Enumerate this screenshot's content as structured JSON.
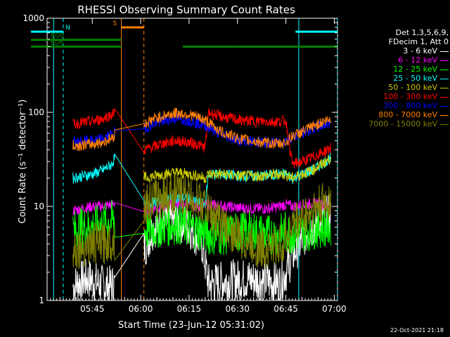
{
  "chart_data": {
    "type": "line",
    "title": "RHESSI Observing Summary Count Rates",
    "ylabel": "Count Rate (s⁻¹ detector⁻¹)",
    "xlabel": "Start Time (23-Jun-12 05:31:02)",
    "y_scale": "log",
    "ylim": [
      1,
      1000
    ],
    "xlim_minutes": [
      0,
      90
    ],
    "x_ticks": [
      {
        "t": 14,
        "label": "05:45"
      },
      {
        "t": 29,
        "label": "06:00"
      },
      {
        "t": 44,
        "label": "06:15"
      },
      {
        "t": 59,
        "label": "06:30"
      },
      {
        "t": 74,
        "label": "06:45"
      },
      {
        "t": 89,
        "label": "07:00"
      }
    ],
    "y_ticks": [
      {
        "v": 1,
        "label": "1"
      },
      {
        "v": 10,
        "label": "10"
      },
      {
        "v": 100,
        "label": "100"
      },
      {
        "v": 1000,
        "label": "1000"
      }
    ],
    "legend_header": [
      "Det 1,3,5,6,9,",
      "FDecim 1, Att 0"
    ],
    "series": [
      {
        "name": "3 - 6 keV",
        "color": "#ffffff",
        "x": [
          8,
          10,
          13,
          16,
          19,
          21,
          30,
          33,
          38,
          43,
          46,
          48,
          50,
          55,
          62,
          68,
          72,
          74,
          76,
          80,
          84,
          87,
          88
        ],
        "y": [
          1.4,
          1.6,
          1.7,
          1.5,
          1.4,
          1.5,
          3.5,
          6,
          7,
          6.5,
          5,
          4,
          1.5,
          1.6,
          1.7,
          1.6,
          1.5,
          2,
          3,
          5,
          7,
          8,
          7
        ]
      },
      {
        "name": "6 - 12 keV",
        "color": "#ff00ff",
        "x": [
          8,
          11,
          14,
          17,
          20,
          21,
          30,
          35,
          40,
          44,
          48,
          50,
          55,
          62,
          68,
          72,
          74,
          76,
          80,
          84,
          88
        ],
        "y": [
          9,
          9.5,
          10,
          10,
          10.5,
          11,
          9,
          10,
          11,
          10.5,
          10,
          10.5,
          10,
          9.5,
          9.5,
          10,
          10.5,
          10,
          10.5,
          11,
          10
        ]
      },
      {
        "name": "12 - 25 keV",
        "color": "#00ff00",
        "x": [
          8,
          11,
          14,
          17,
          20,
          21,
          30,
          35,
          40,
          44,
          48,
          50,
          55,
          62,
          68,
          72,
          74,
          76,
          80,
          84,
          88
        ],
        "y": [
          5.5,
          6,
          6,
          6.5,
          7,
          7,
          5.5,
          6,
          6.5,
          6,
          5.5,
          5,
          5,
          5.5,
          5,
          5,
          5.5,
          5,
          5.5,
          6,
          6
        ]
      },
      {
        "name": "25 - 50 keV",
        "color": "#00ffff",
        "x": [
          8,
          11,
          14,
          17,
          20,
          21,
          30,
          33,
          36,
          40,
          44,
          47,
          49,
          50,
          54,
          60,
          66,
          72,
          74,
          76,
          79,
          82,
          85,
          88
        ],
        "y": [
          20,
          21,
          22,
          24,
          28,
          33,
          10,
          11,
          12,
          12.5,
          12,
          11,
          10.5,
          22,
          22,
          21,
          21,
          22,
          22,
          20,
          22,
          24,
          28,
          33
        ]
      },
      {
        "name": "50 - 100 keV",
        "color": "#cccc00",
        "x": [
          30,
          33,
          36,
          40,
          44,
          47,
          49,
          50,
          54,
          60,
          66,
          72,
          74,
          76,
          79,
          82,
          85,
          88
        ],
        "y": [
          20,
          21,
          22,
          23,
          22,
          21,
          20,
          22,
          22,
          21,
          21,
          22,
          22,
          20,
          22,
          24,
          28,
          33
        ]
      },
      {
        "name": "100 - 300 keV",
        "color": "#ff0000",
        "x": [
          8,
          11,
          14,
          17,
          20,
          21,
          30,
          33,
          36,
          40,
          44,
          47,
          49,
          50,
          54,
          60,
          66,
          72,
          74,
          76,
          79,
          82,
          85,
          88
        ],
        "y": [
          75,
          78,
          80,
          85,
          95,
          100,
          40,
          43,
          47,
          50,
          48,
          45,
          42,
          100,
          90,
          82,
          80,
          80,
          82,
          28,
          30,
          33,
          37,
          42
        ]
      },
      {
        "name": "300 - 800 keV",
        "color": "#0000ff",
        "x": [
          8,
          11,
          14,
          17,
          20,
          21,
          30,
          33,
          36,
          40,
          44,
          47,
          49,
          50,
          54,
          60,
          66,
          72,
          74,
          76,
          79,
          82,
          85,
          88
        ],
        "y": [
          48,
          49,
          50,
          52,
          58,
          63,
          68,
          75,
          82,
          86,
          82,
          76,
          72,
          70,
          58,
          50,
          48,
          47,
          50,
          55,
          60,
          66,
          72,
          78
        ]
      },
      {
        "name": "800 - 7000 keV",
        "color": "#ff8000",
        "x": [
          8,
          11,
          14,
          17,
          20,
          21,
          30,
          33,
          36,
          40,
          44,
          47,
          49,
          50,
          54,
          60,
          66,
          72,
          74,
          76,
          79,
          82,
          85,
          88
        ],
        "y": [
          44,
          45,
          46,
          48,
          53,
          58,
          75,
          85,
          92,
          98,
          95,
          88,
          82,
          78,
          62,
          52,
          48,
          46,
          48,
          56,
          62,
          70,
          78,
          85
        ]
      },
      {
        "name": "7000 - 15000 keV",
        "color": "#808000",
        "x": [
          8,
          11,
          14,
          17,
          20,
          21,
          30,
          33,
          36,
          40,
          44,
          47,
          49,
          50,
          55,
          60,
          66,
          72,
          74,
          76,
          80,
          84,
          88
        ],
        "y": [
          3.5,
          3.7,
          4,
          4,
          4.3,
          4.5,
          10,
          12,
          13,
          14,
          13,
          11.5,
          10,
          9,
          6,
          4.5,
          3.5,
          3.8,
          4.5,
          6.5,
          8,
          10,
          12
        ]
      }
    ],
    "flags": [
      {
        "label": "RD0",
        "color": "#008000",
        "level": 590,
        "segments": [
          [
            -5,
            1
          ],
          [
            1,
            23
          ]
        ]
      },
      {
        "label": "RD6",
        "color": "#008000",
        "level": 500,
        "segments": [
          [
            -5,
            1
          ],
          [
            1,
            23
          ],
          [
            42,
            58
          ],
          [
            58,
            90
          ]
        ]
      },
      {
        "label": "N",
        "color": "#00ffff",
        "level": 720,
        "segments": [
          [
            -5,
            5
          ],
          [
            77,
            90
          ]
        ]
      },
      {
        "label": "S",
        "color": "#ff8000",
        "level": 800,
        "segments": [
          [
            23,
            30
          ]
        ]
      }
    ],
    "shading": [
      {
        "label": "S",
        "color": "#ff8000",
        "solid": 23,
        "dashed": 30
      },
      {
        "label": "N",
        "color": "#00ffff",
        "solid": 2,
        "dashed": 5
      },
      {
        "label": "N",
        "color": "#00ffff",
        "solid": 78,
        "dashed": 90
      }
    ]
  },
  "timestamp": "22-Oct-2021 21:18"
}
